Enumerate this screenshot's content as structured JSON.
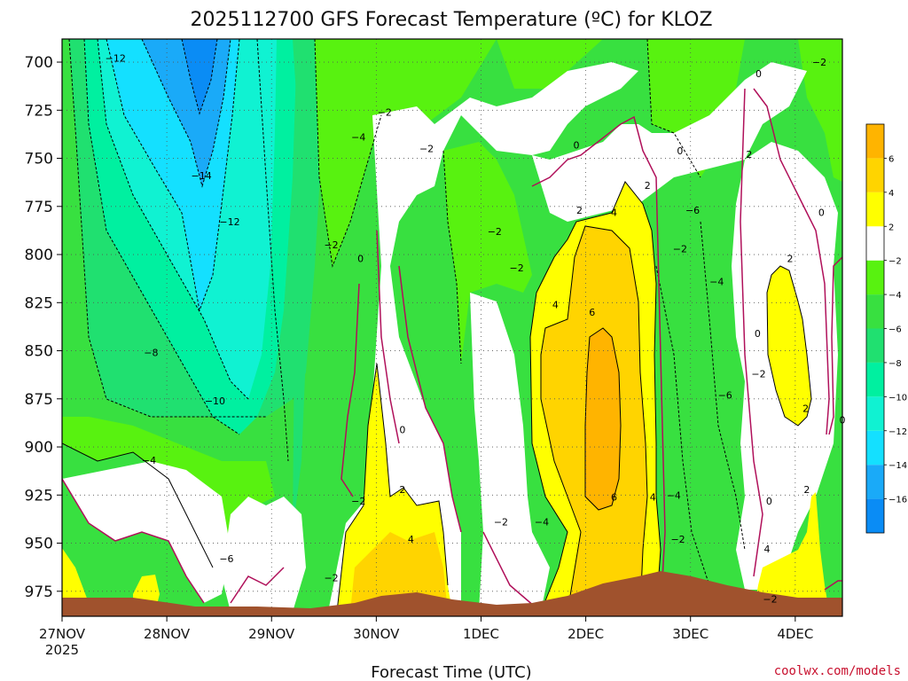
{
  "chart_data": {
    "type": "heatmap",
    "title": "2025112700 GFS Forecast Temperature (ºC) for KLOZ",
    "xlabel": "Forecast Time (UTC)",
    "ylabel": "",
    "credit": "coolwx.com/models",
    "x_ticks": [
      {
        "label": "27NOV",
        "sub": "2025"
      },
      {
        "label": "28NOV",
        "sub": ""
      },
      {
        "label": "29NOV",
        "sub": ""
      },
      {
        "label": "30NOV",
        "sub": ""
      },
      {
        "label": "1DEC",
        "sub": ""
      },
      {
        "label": "2DEC",
        "sub": ""
      },
      {
        "label": "3DEC",
        "sub": ""
      },
      {
        "label": "4DEC",
        "sub": ""
      }
    ],
    "y_axis": {
      "unit": "hPa",
      "range": [
        988,
        688
      ],
      "ticks": [
        700,
        725,
        750,
        775,
        800,
        825,
        850,
        875,
        900,
        925,
        950,
        975
      ]
    },
    "x_range_days": [
      0,
      7.45
    ],
    "colorbar": {
      "bins": [
        {
          "low": -18,
          "high": -16,
          "color": "#0a8cf5"
        },
        {
          "low": -16,
          "high": -14,
          "color": "#1aaaf8"
        },
        {
          "low": -14,
          "high": -12,
          "color": "#14e0ff"
        },
        {
          "low": -12,
          "high": -10,
          "color": "#10f2d2"
        },
        {
          "low": -10,
          "high": -8,
          "color": "#00f0a0"
        },
        {
          "low": -8,
          "high": -6,
          "color": "#20e070"
        },
        {
          "low": -6,
          "high": -4,
          "color": "#38e040"
        },
        {
          "low": -4,
          "high": -2,
          "color": "#58f210"
        },
        {
          "low": -2,
          "high": 2,
          "color": "#ffffff"
        },
        {
          "low": 2,
          "high": 4,
          "color": "#ffff00"
        },
        {
          "low": 4,
          "high": 6,
          "color": "#ffd400"
        },
        {
          "low": 6,
          "high": 8,
          "color": "#ffb400"
        }
      ],
      "labels": [
        -16,
        -14,
        -12,
        -10,
        -8,
        -6,
        -4,
        -2,
        2,
        4,
        6
      ]
    },
    "terrain_color": "#a0522d",
    "contour_labels": [
      {
        "day": 0.51,
        "p": 698,
        "v": -12
      },
      {
        "day": 1.33,
        "p": 759,
        "v": -14
      },
      {
        "day": 1.6,
        "p": 783,
        "v": -12
      },
      {
        "day": 0.85,
        "p": 851,
        "v": -8
      },
      {
        "day": 1.46,
        "p": 876,
        "v": -10
      },
      {
        "day": 0.83,
        "p": 907,
        "v": -4
      },
      {
        "day": 1.57,
        "p": 958,
        "v": -6
      },
      {
        "day": 2.83,
        "p": 739,
        "v": -4
      },
      {
        "day": 3.08,
        "p": 726,
        "v": -2
      },
      {
        "day": 2.57,
        "p": 795,
        "v": -2
      },
      {
        "day": 2.85,
        "p": 802,
        "v": 0
      },
      {
        "day": 3.25,
        "p": 891,
        "v": 0
      },
      {
        "day": 2.83,
        "p": 928,
        "v": -2
      },
      {
        "day": 3.25,
        "p": 922,
        "v": 2
      },
      {
        "day": 3.33,
        "p": 948,
        "v": 4
      },
      {
        "day": 2.57,
        "p": 968,
        "v": -2
      },
      {
        "day": 3.48,
        "p": 745,
        "v": -2
      },
      {
        "day": 4.13,
        "p": 788,
        "v": -2
      },
      {
        "day": 4.34,
        "p": 807,
        "v": -2
      },
      {
        "day": 4.19,
        "p": 939,
        "v": -2
      },
      {
        "day": 4.58,
        "p": 939,
        "v": -4
      },
      {
        "day": 4.91,
        "p": 743,
        "v": 0
      },
      {
        "day": 4.94,
        "p": 777,
        "v": 2
      },
      {
        "day": 4.71,
        "p": 826,
        "v": 4
      },
      {
        "day": 5.06,
        "p": 830,
        "v": 6
      },
      {
        "day": 5.27,
        "p": 778,
        "v": 4
      },
      {
        "day": 5.59,
        "p": 764,
        "v": 2
      },
      {
        "day": 5.27,
        "p": 926,
        "v": 6
      },
      {
        "day": 5.64,
        "p": 926,
        "v": 4
      },
      {
        "day": 5.9,
        "p": 746,
        "v": 0
      },
      {
        "day": 5.9,
        "p": 797,
        "v": -2
      },
      {
        "day": 6.02,
        "p": 777,
        "v": -6
      },
      {
        "day": 5.84,
        "p": 925,
        "v": -4
      },
      {
        "day": 5.88,
        "p": 948,
        "v": -2
      },
      {
        "day": 6.25,
        "p": 814,
        "v": -4
      },
      {
        "day": 6.33,
        "p": 873,
        "v": -6
      },
      {
        "day": 6.56,
        "p": 748,
        "v": 2
      },
      {
        "day": 6.65,
        "p": 706,
        "v": 0
      },
      {
        "day": 6.64,
        "p": 841,
        "v": 0
      },
      {
        "day": 6.65,
        "p": 862,
        "v": -2
      },
      {
        "day": 6.75,
        "p": 928,
        "v": 0
      },
      {
        "day": 6.73,
        "p": 953,
        "v": 4
      },
      {
        "day": 6.76,
        "p": 979,
        "v": -2
      },
      {
        "day": 6.95,
        "p": 802,
        "v": 2
      },
      {
        "day": 7.1,
        "p": 880,
        "v": 2
      },
      {
        "day": 7.11,
        "p": 922,
        "v": 2
      },
      {
        "day": 7.25,
        "p": 778,
        "v": 0
      },
      {
        "day": 7.23,
        "p": 700,
        "v": -2
      },
      {
        "day": 7.45,
        "p": 886,
        "v": 0
      }
    ]
  }
}
